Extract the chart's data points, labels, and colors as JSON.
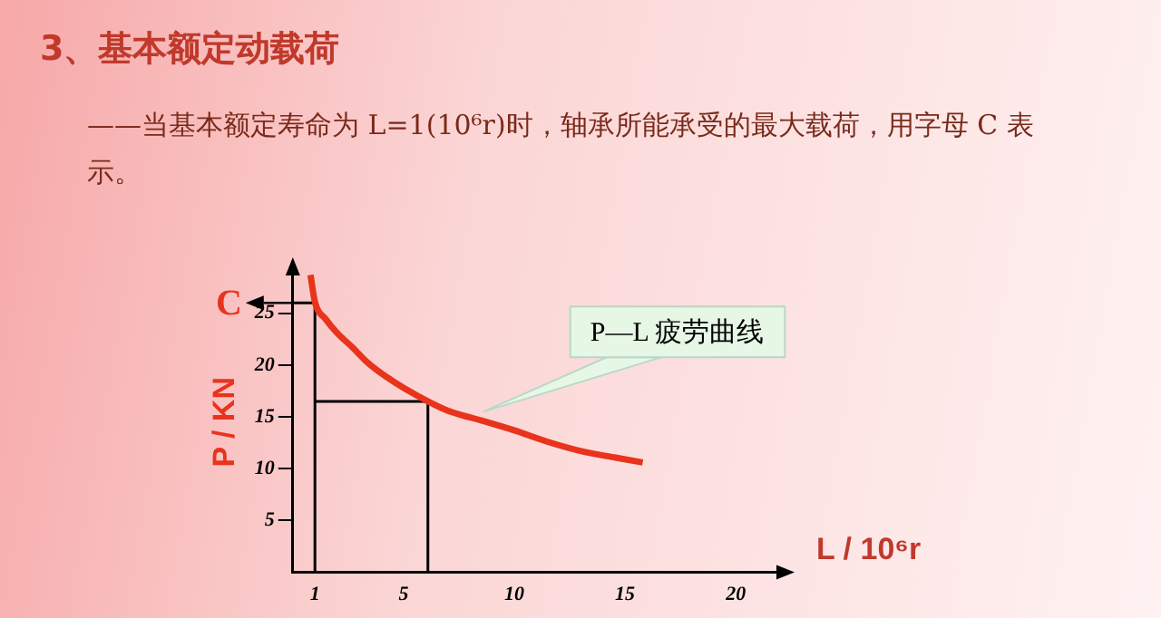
{
  "chart_data": {
    "type": "line",
    "title": "3、基本额定动载荷",
    "subtitle": "——当基本额定寿命为 L=1(10⁶r)时，轴承所能承受的最大载荷，用字母 C 表示。",
    "xlabel": "L / 10⁶r",
    "ylabel": "P / KN",
    "xlim": [
      0,
      22
    ],
    "ylim": [
      0,
      29
    ],
    "xticks": [
      1,
      5,
      10,
      15,
      20
    ],
    "yticks": [
      5,
      10,
      15,
      20,
      25
    ],
    "series": [
      {
        "color": "#e8341c",
        "x": [
          0.8,
          1,
          1.5,
          2,
          2.7,
          3.4,
          4.2,
          5,
          6.1,
          7,
          8.6,
          10,
          11.5,
          13.2,
          14.5,
          15.8
        ],
        "values": [
          28.7,
          26.1,
          24.4,
          23.1,
          21.7,
          20.2,
          18.9,
          17.8,
          16.5,
          15.6,
          14.6,
          13.7,
          12.6,
          11.6,
          11.1,
          10.6
        ]
      },
      {
        "color": "#000000",
        "x": [
          1,
          6.1,
          6.1
        ],
        "values": [
          16.5,
          16.5,
          0
        ]
      },
      {
        "color": "#000000",
        "x": [
          1,
          1,
          0
        ],
        "values": [
          0,
          26,
          26
        ]
      }
    ],
    "annotations": [
      {
        "text": "C",
        "x": 0,
        "y": 26
      },
      {
        "text": "P—L 疲劳曲线",
        "x": 8.6,
        "y": 15.5
      }
    ],
    "grid": false,
    "legend": false,
    "marker": "none",
    "line_style": "solid"
  }
}
